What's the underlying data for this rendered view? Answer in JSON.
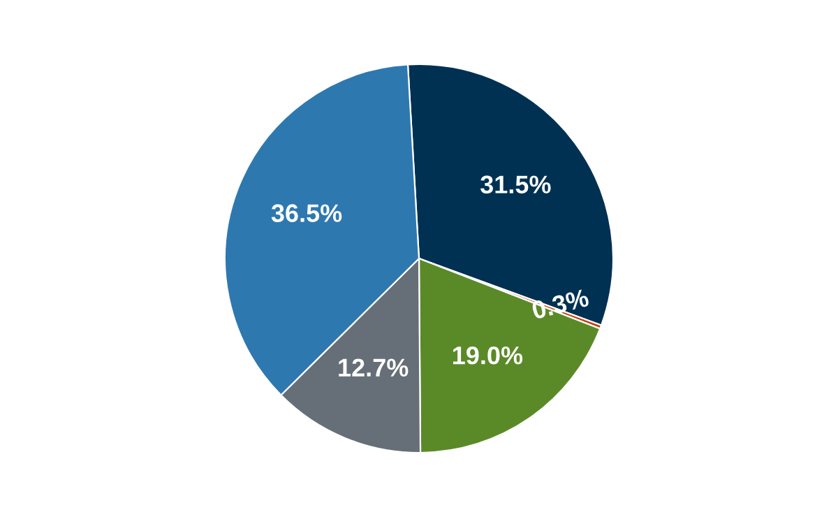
{
  "chart_data": {
    "type": "pie",
    "categories": [
      null,
      null,
      null,
      null,
      null
    ],
    "values": [
      31.5,
      0.3,
      19.0,
      12.7,
      36.5
    ],
    "colors": [
      "#003152",
      "#c4410f",
      "#5a8a28",
      "#666f77",
      "#2e78b0"
    ],
    "value_labels": [
      "31.5%",
      "0.3%",
      "19.0%",
      "12.7%",
      "36.5%"
    ]
  }
}
